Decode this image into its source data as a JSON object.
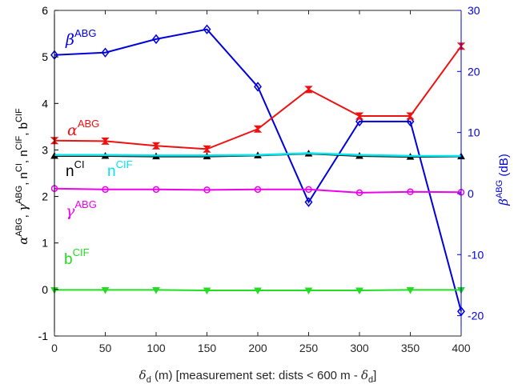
{
  "chart_data": {
    "type": "line",
    "x": [
      0,
      50,
      100,
      150,
      200,
      250,
      300,
      350,
      400
    ],
    "xlim": [
      0,
      400
    ],
    "xticks": [
      "0",
      "50",
      "100",
      "150",
      "200",
      "250",
      "300",
      "350",
      "400"
    ],
    "xlabel": {
      "delta": "δ",
      "sub": "d",
      "rest1": " (m) [measurement set: dists < 600 m - ",
      "delta2": "δ",
      "sub2": "d",
      "rest2": "]"
    },
    "left_axis": {
      "ylim": [
        -1,
        6
      ],
      "ticks": [
        "-1",
        "0",
        "1",
        "2",
        "3",
        "4",
        "5",
        "6"
      ],
      "label_parts": [
        {
          "base": "α",
          "sup": "ABG",
          "sep": ", "
        },
        {
          "base": "γ",
          "sup": "ABG",
          "sep": ", "
        },
        {
          "base": "n",
          "sup": "CI",
          "sep": ", "
        },
        {
          "base": "n",
          "sup": "CIF",
          "sep": ", "
        },
        {
          "base": "b",
          "sup": "CIF",
          "sep": ""
        }
      ]
    },
    "right_axis": {
      "ylim": [
        -23.33,
        30
      ],
      "ticks": [
        "30",
        "20",
        "10",
        "0",
        "-10",
        "-20"
      ],
      "tick_values": [
        30,
        20,
        10,
        0,
        -10,
        -20
      ],
      "label": {
        "base": "β",
        "sup": "ABG",
        "unit": " (dB)"
      }
    },
    "series": [
      {
        "name_base": "β",
        "name_sup": "ABG",
        "axis": "right",
        "color": "#0000dd",
        "marker": "diamond",
        "values": [
          22.7,
          23.1,
          25.3,
          26.9,
          17.5,
          -1.4,
          11.8,
          11.8,
          -19.3
        ]
      },
      {
        "name_base": "α",
        "name_sup": "ABG",
        "axis": "left",
        "color": "#ee1111",
        "marker": "bowtie",
        "values": [
          3.2,
          3.19,
          3.09,
          3.02,
          3.45,
          4.3,
          3.73,
          3.73,
          5.23
        ]
      },
      {
        "name_base": "n",
        "name_sup": "CI",
        "axis": "left",
        "color": "#000000",
        "marker": "triangle",
        "values": [
          2.87,
          2.87,
          2.86,
          2.86,
          2.88,
          2.92,
          2.87,
          2.85,
          2.86
        ]
      },
      {
        "name_base": "n",
        "name_sup": "CIF",
        "axis": "left",
        "color": "#00e5ee",
        "marker": "none",
        "values": [
          2.89,
          2.89,
          2.88,
          2.88,
          2.89,
          2.93,
          2.89,
          2.87,
          2.87
        ]
      },
      {
        "name_base": "γ",
        "name_sup": "ABG",
        "axis": "left",
        "color": "#ee00ee",
        "marker": "circle",
        "values": [
          2.17,
          2.15,
          2.15,
          2.14,
          2.15,
          2.15,
          2.08,
          2.1,
          2.09
        ]
      },
      {
        "name_base": "b",
        "name_sup": "CIF",
        "axis": "left",
        "color": "#22dd22",
        "marker": "triangle-down",
        "values": [
          -0.01,
          -0.01,
          -0.01,
          -0.02,
          -0.02,
          -0.02,
          -0.02,
          -0.01,
          -0.01
        ]
      }
    ]
  },
  "colors": {
    "left_axis": "#000000",
    "right_axis": "#0000dd"
  }
}
